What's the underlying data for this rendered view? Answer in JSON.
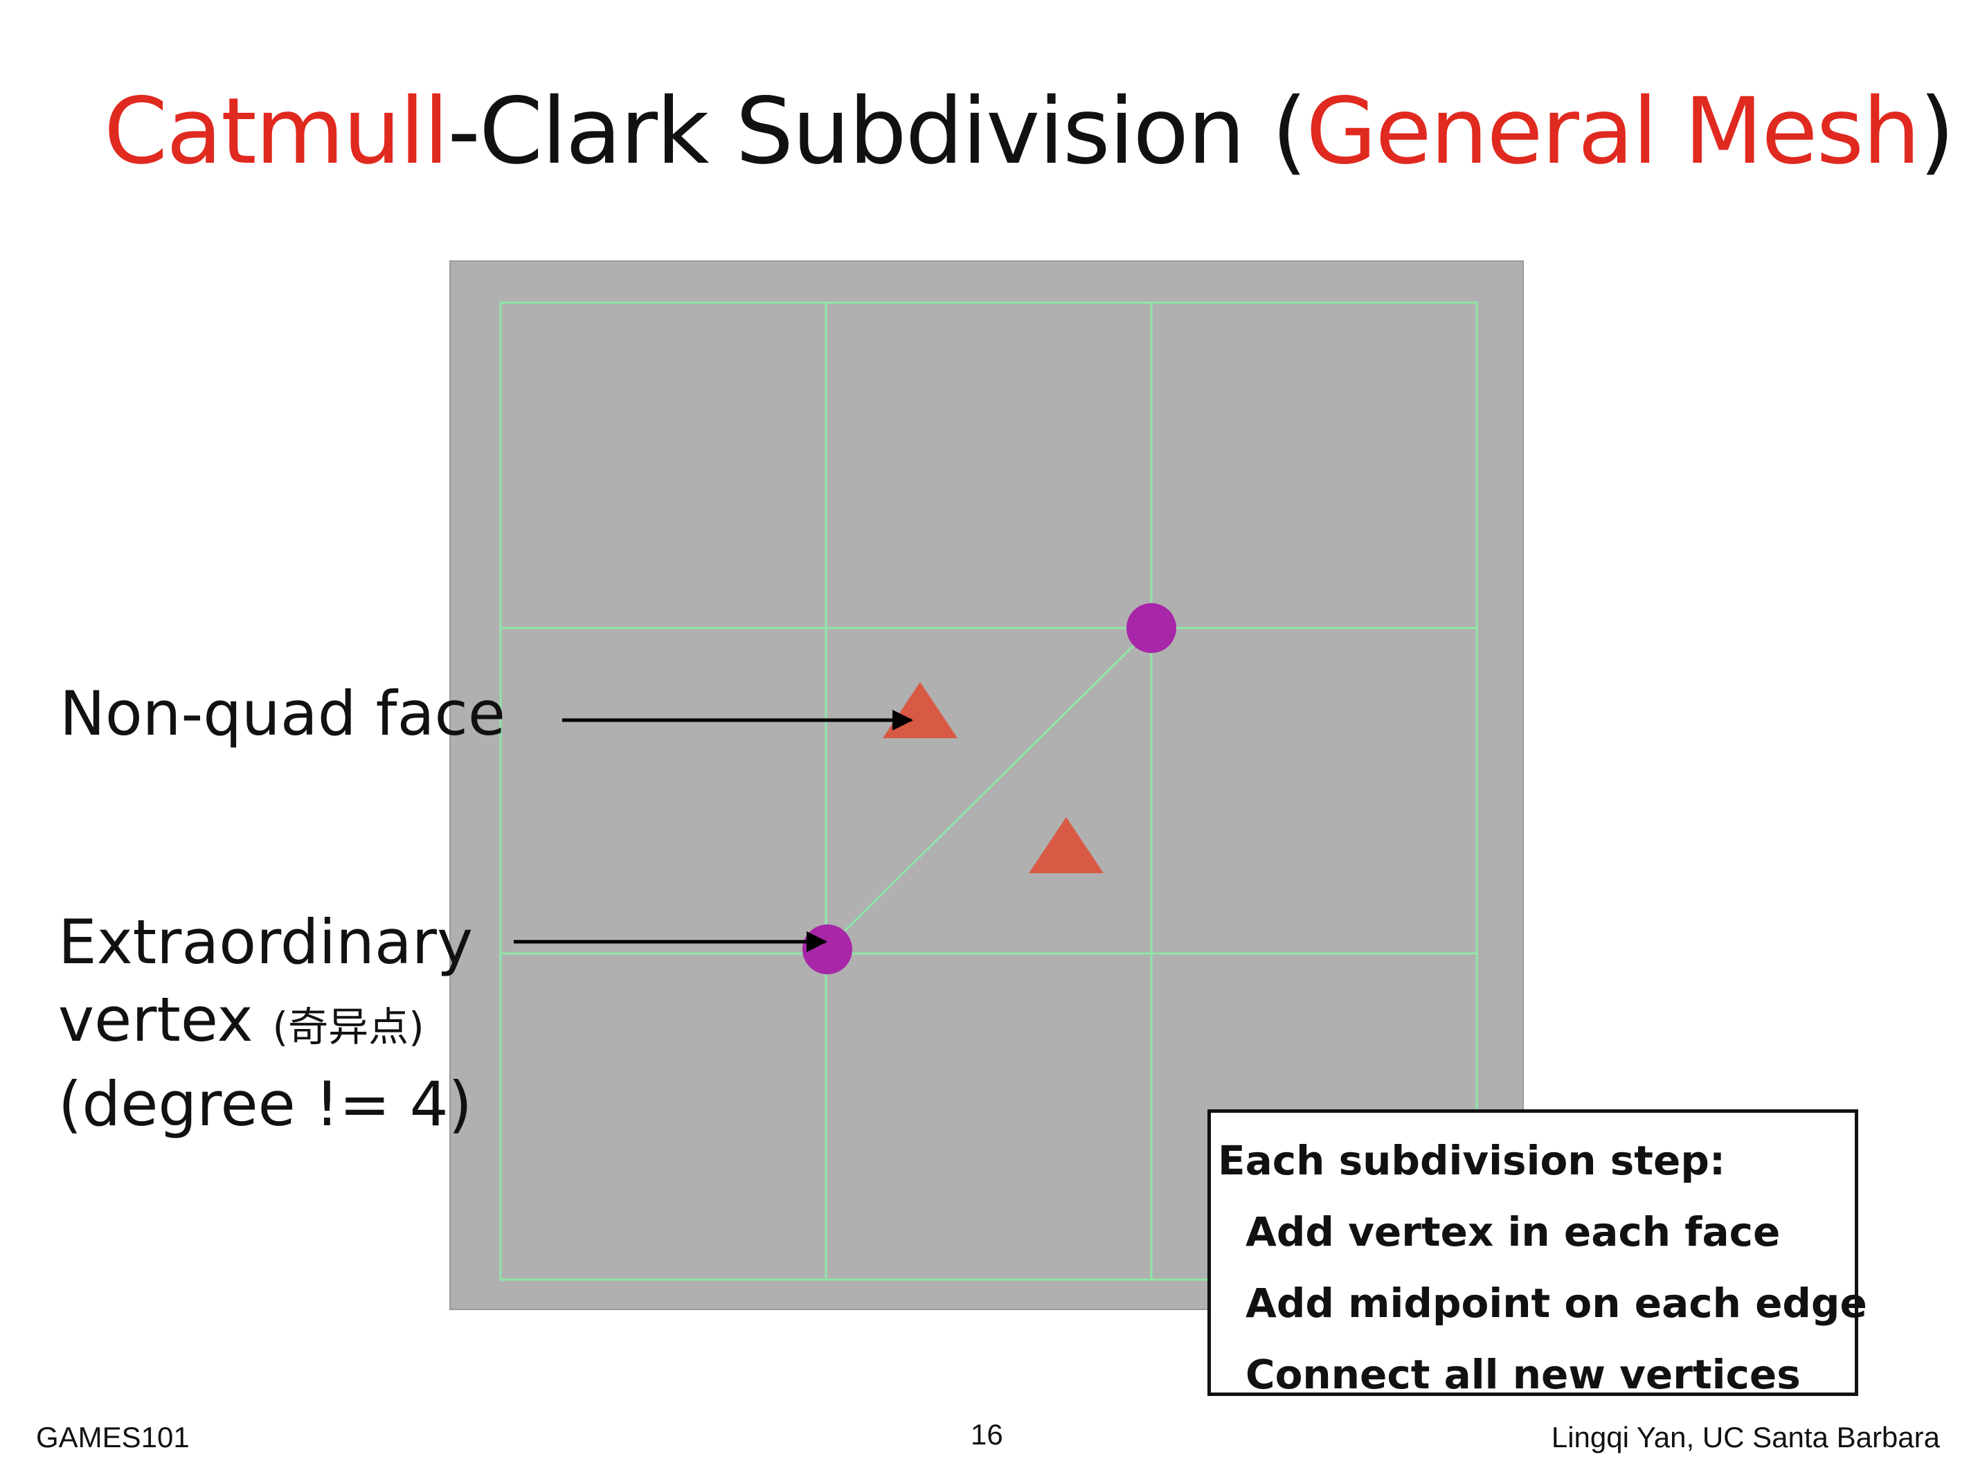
{
  "title": {
    "part1": "Catmull",
    "part2": "-Clark Subdivision (",
    "part3": "General Mesh",
    "part4": ")"
  },
  "labels": {
    "non_quad_face": "Non-quad face",
    "extraordinary_line1": "Extraordinary",
    "extraordinary_line2": "vertex ",
    "extraordinary_cjk": "(奇异点)",
    "extraordinary_line3": "(degree != 4)"
  },
  "steps_box": {
    "heading": "Each subdivision step:",
    "items": [
      "Add vertex in each face",
      "Add midpoint on each edge",
      "Connect all new vertices"
    ]
  },
  "footer": {
    "left": "GAMES101",
    "page": "16",
    "right": "Lingqi Yan, UC Santa Barbara"
  },
  "colors": {
    "title_accent": "#e0291f",
    "mesh_background": "#b0b0b0",
    "mesh_lines": "#8ee6a6",
    "vertex": "#a826a8",
    "face_point": "#d85a45"
  }
}
